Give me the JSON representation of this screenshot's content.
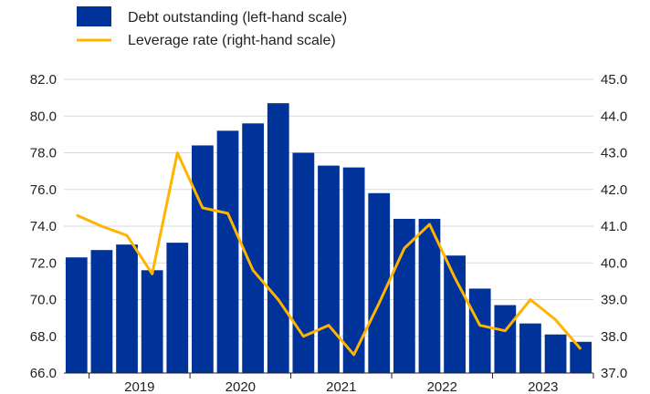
{
  "chart_data": {
    "type": "bar",
    "legend_position": "top-left",
    "grid": true,
    "x_tick_labels": [
      "2019",
      "2020",
      "2021",
      "2022",
      "2023"
    ],
    "x_tick_group_size": 4,
    "y_left": {
      "ticks": [
        "82.0",
        "80.0",
        "78.0",
        "76.0",
        "74.0",
        "72.0",
        "70.0",
        "68.0",
        "66.0"
      ],
      "lim": [
        66,
        82
      ]
    },
    "y_right": {
      "ticks": [
        "45.0",
        "44.0",
        "43.0",
        "42.0",
        "41.0",
        "40.0",
        "39.0",
        "38.0",
        "37.0"
      ],
      "lim": [
        37,
        45
      ]
    },
    "colors": {
      "bar": "#003399",
      "line": "#ffb400"
    },
    "series": [
      {
        "name": "Debt outstanding (left-hand scale)",
        "axis": "left",
        "kind": "bar",
        "values": [
          72.3,
          72.7,
          73.0,
          71.6,
          73.1,
          78.4,
          79.2,
          79.6,
          80.7,
          78.0,
          77.3,
          77.2,
          75.8,
          74.4,
          74.4,
          72.4,
          70.6,
          69.7,
          68.7,
          68.1,
          67.7
        ]
      },
      {
        "name": "Leverage rate (right-hand scale)",
        "axis": "right",
        "kind": "line",
        "values": [
          41.3,
          41.0,
          40.75,
          39.7,
          43.0,
          41.5,
          41.35,
          39.8,
          39.0,
          38.0,
          38.3,
          37.5,
          38.9,
          40.4,
          41.05,
          39.6,
          38.3,
          38.15,
          39.0,
          38.45,
          37.65
        ]
      }
    ]
  }
}
